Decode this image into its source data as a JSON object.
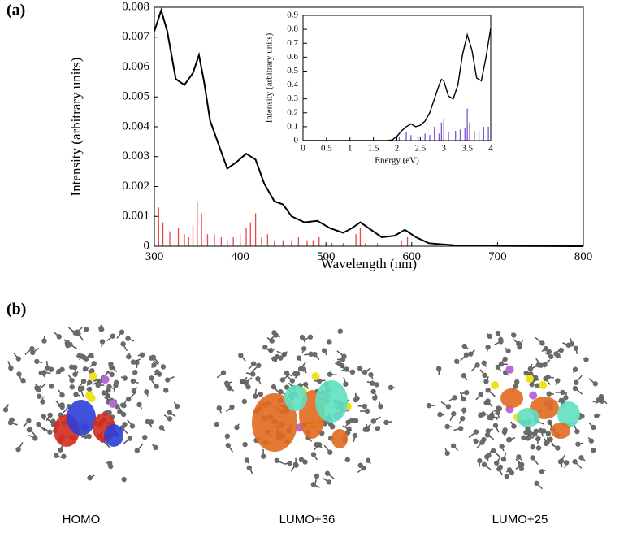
{
  "panel_labels": [
    "(a)",
    "(b)"
  ],
  "orbitals": [
    "HOMO",
    "LUMO+36",
    "LUMO+25"
  ],
  "chart_data": [
    {
      "type": "line",
      "x_label": "Wavelength (nm)",
      "y_label": "Intensity (arbitrary units)",
      "xlim": [
        300,
        800
      ],
      "xticks": [
        300,
        400,
        500,
        600,
        700,
        800
      ],
      "ylim": [
        0,
        0.008
      ],
      "yticks": [
        0,
        0.001,
        0.002,
        0.003,
        0.004,
        0.005,
        0.006,
        0.007,
        0.008
      ],
      "series": [
        {
          "color": "#000000",
          "x": [
            300,
            308,
            315,
            325,
            335,
            345,
            352,
            358,
            365,
            375,
            385,
            395,
            407,
            418,
            428,
            440,
            450,
            460,
            475,
            490,
            505,
            520,
            530,
            540,
            550,
            565,
            580,
            592,
            605,
            620,
            650,
            700,
            800
          ],
          "values": [
            0.0072,
            0.0079,
            0.0072,
            0.0056,
            0.0054,
            0.0058,
            0.0064,
            0.0055,
            0.0042,
            0.0034,
            0.0026,
            0.0028,
            0.0031,
            0.0029,
            0.0021,
            0.0015,
            0.0014,
            0.001,
            0.0008,
            0.00085,
            0.0006,
            0.00045,
            0.0006,
            0.0008,
            0.0006,
            0.0003,
            0.00035,
            0.00055,
            0.0003,
            0.0001,
            3e-05,
            1e-05,
            0
          ]
        },
        {
          "type": "stem",
          "color": "#e8474b",
          "x": [
            305,
            310,
            318,
            328,
            335,
            340,
            345,
            350,
            355,
            362,
            370,
            378,
            385,
            392,
            400,
            407,
            412,
            418,
            425,
            432,
            440,
            450,
            460,
            468,
            478,
            485,
            492,
            507,
            520,
            535,
            540,
            546,
            560,
            588,
            595
          ],
          "values": [
            0.0013,
            0.0008,
            0.0005,
            0.0006,
            0.0004,
            0.0003,
            0.0007,
            0.0015,
            0.0011,
            0.0004,
            0.0004,
            0.0003,
            0.0002,
            0.0003,
            0.0004,
            0.0006,
            0.0008,
            0.0011,
            0.0003,
            0.0004,
            0.0002,
            0.0002,
            0.0002,
            0.0003,
            0.0002,
            0.0002,
            0.0003,
            0.0001,
            0.0001,
            0.0004,
            0.0006,
            0.0001,
            0.0001,
            0.0002,
            0.0003
          ]
        }
      ]
    },
    {
      "type": "line",
      "x_label": "Energy (eV)",
      "y_label": "Intensity (arbitrary units)",
      "xlim": [
        0,
        4
      ],
      "xticks": [
        0,
        0.5,
        1,
        1.5,
        2,
        2.5,
        3,
        3.5,
        4
      ],
      "ylim": [
        0,
        0.9
      ],
      "yticks": [
        0,
        0.1,
        0.2,
        0.3,
        0.4,
        0.5,
        0.6,
        0.7,
        0.8,
        0.9
      ],
      "series": [
        {
          "color": "#000000",
          "x": [
            0,
            1.8,
            1.9,
            2.0,
            2.1,
            2.2,
            2.3,
            2.4,
            2.5,
            2.6,
            2.7,
            2.8,
            2.9,
            2.95,
            3.0,
            3.1,
            3.2,
            3.3,
            3.4,
            3.5,
            3.6,
            3.7,
            3.8,
            3.9,
            4.0
          ],
          "values": [
            0,
            0,
            0.005,
            0.03,
            0.07,
            0.1,
            0.12,
            0.1,
            0.11,
            0.14,
            0.2,
            0.3,
            0.4,
            0.44,
            0.43,
            0.32,
            0.3,
            0.4,
            0.62,
            0.76,
            0.65,
            0.45,
            0.43,
            0.6,
            0.81
          ]
        },
        {
          "type": "stem",
          "color": "#7b52d9",
          "x": [
            2.05,
            2.2,
            2.3,
            2.45,
            2.6,
            2.7,
            2.8,
            2.9,
            2.95,
            3.0,
            3.1,
            3.25,
            3.35,
            3.45,
            3.5,
            3.55,
            3.65,
            3.75,
            3.85,
            3.95
          ],
          "values": [
            0.03,
            0.06,
            0.04,
            0.04,
            0.05,
            0.04,
            0.1,
            0.05,
            0.13,
            0.16,
            0.06,
            0.07,
            0.08,
            0.09,
            0.23,
            0.13,
            0.07,
            0.06,
            0.1,
            0.1
          ]
        }
      ]
    }
  ]
}
